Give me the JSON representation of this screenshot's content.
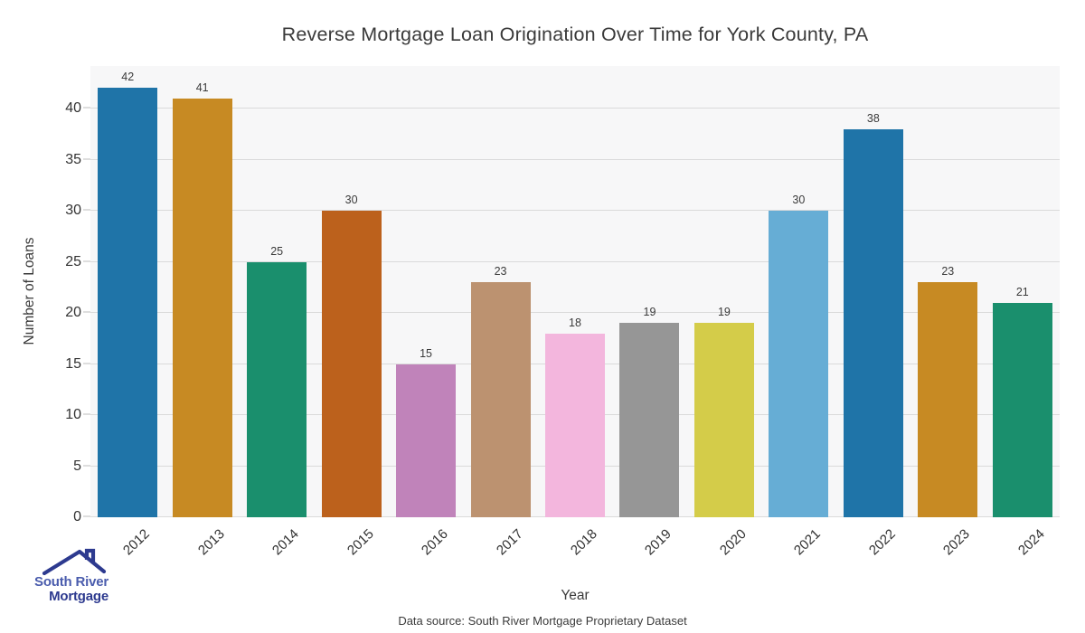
{
  "title": "Reverse Mortgage Loan Origination Over Time for York County, PA",
  "chart_data": {
    "type": "bar",
    "title": "Reverse Mortgage Loan Origination Over Time for York County, PA",
    "categories": [
      "2012",
      "2013",
      "2014",
      "2015",
      "2016",
      "2017",
      "2018",
      "2019",
      "2020",
      "2021",
      "2022",
      "2023",
      "2024"
    ],
    "values": [
      42,
      41,
      25,
      30,
      15,
      23,
      18,
      19,
      19,
      30,
      38,
      23,
      21
    ],
    "bar_colors": [
      "#1f74a8",
      "#c78a23",
      "#1a8f6d",
      "#bc611c",
      "#c083ba",
      "#bc9270",
      "#f3b6dd",
      "#969696",
      "#d4cc49",
      "#66add5",
      "#1f74a8",
      "#c78a23",
      "#1a8f6d"
    ],
    "xlabel": "Year",
    "ylabel": "Number of Loans",
    "yticks": [
      0,
      5,
      10,
      15,
      20,
      25,
      30,
      35,
      40
    ],
    "ylim": [
      0,
      44
    ],
    "grid": true,
    "legend": false,
    "value_labels": true
  },
  "footer": {
    "data_source": "Data source: South River Mortgage Proprietary Dataset"
  },
  "logo": {
    "line1": "South River",
    "line2": "Mortgage",
    "colors": {
      "line1": "#4a5cad",
      "line2": "#2d3a8f",
      "roof": "#2d3a8f"
    }
  },
  "colors": {
    "figure_bg": "#ffffff",
    "plot_bg": "#f7f7f8",
    "gridline": "#dadada",
    "text": "#3a3a3a"
  }
}
